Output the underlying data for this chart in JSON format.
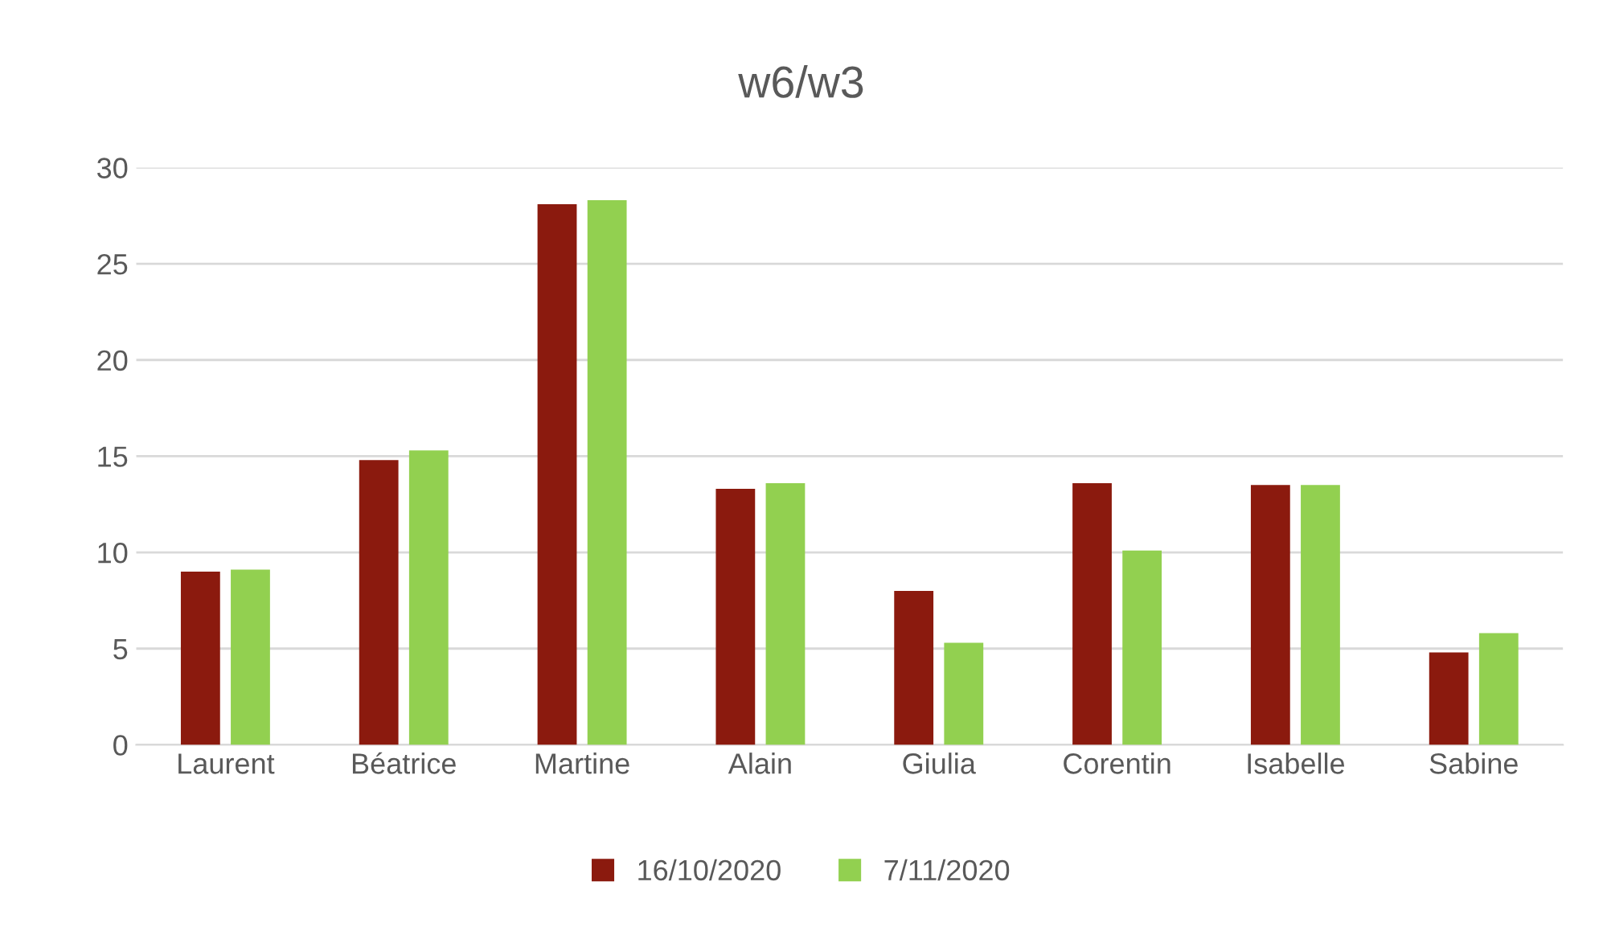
{
  "chart_data": {
    "type": "bar",
    "title": "w6/w3",
    "categories": [
      "Laurent",
      "Béatrice",
      "Martine",
      "Alain",
      "Giulia",
      "Corentin",
      "Isabelle",
      "Sabine"
    ],
    "series": [
      {
        "name": "16/10/2020",
        "color": "#8b1a0e",
        "values": [
          9.0,
          14.8,
          28.1,
          13.3,
          8.0,
          13.6,
          13.5,
          4.8
        ]
      },
      {
        "name": "7/11/2020",
        "color": "#92d050",
        "values": [
          9.1,
          15.3,
          28.3,
          13.6,
          5.3,
          10.1,
          13.5,
          5.8
        ]
      }
    ],
    "ylim": [
      0,
      30
    ],
    "yticks": [
      0,
      5,
      10,
      15,
      20,
      25,
      30
    ],
    "grid": "y",
    "legend": "bottom"
  }
}
